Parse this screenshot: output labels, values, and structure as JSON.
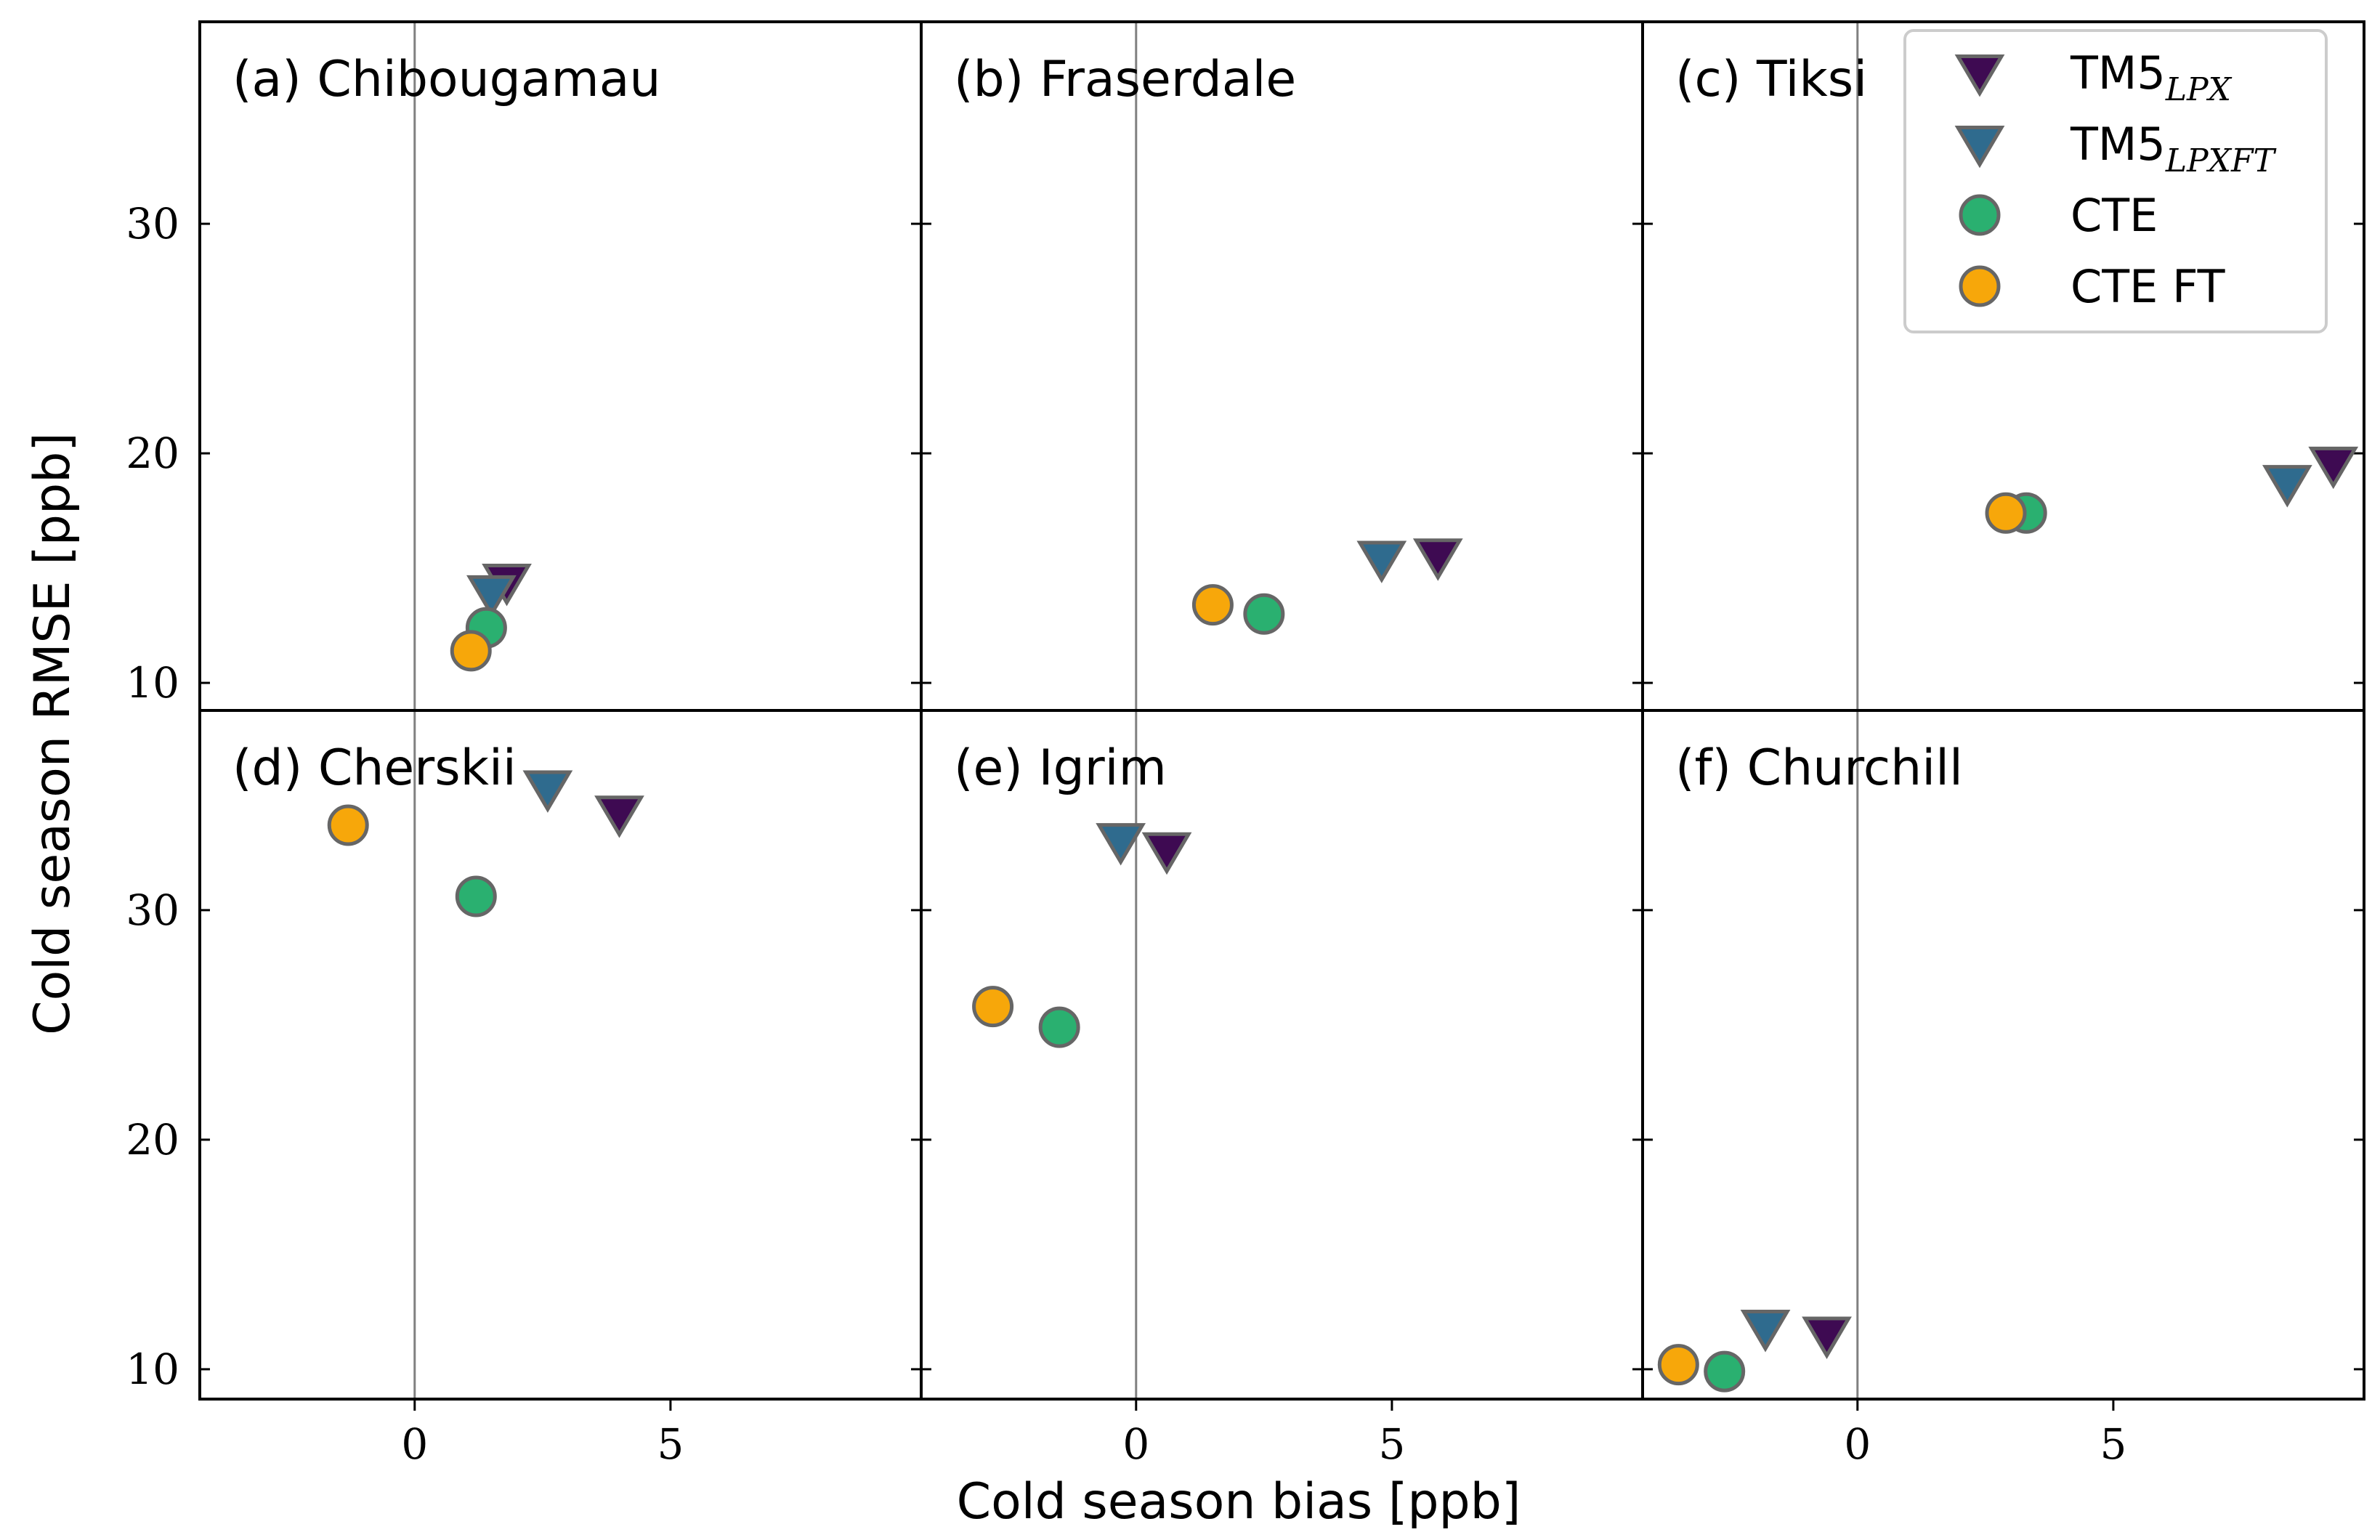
{
  "chart_data": {
    "type": "scatter",
    "layout": "2x3 panels, shared axes",
    "xlabel": "Cold season bias [ppb]",
    "ylabel": "Cold season RMSE [ppb]",
    "columns": [
      {
        "xlim": [
          -4.2,
          9.9
        ],
        "xticks": [
          0,
          5
        ]
      },
      {
        "xlim": [
          -4.2,
          9.9
        ],
        "xticks": [
          0,
          5
        ]
      },
      {
        "xlim": [
          -4.2,
          9.9
        ],
        "xticks": [
          0,
          5
        ]
      }
    ],
    "rows": [
      {
        "ylim": [
          8.8,
          38.8
        ],
        "yticks": [
          10,
          20,
          30
        ]
      },
      {
        "ylim": [
          8.7,
          38.7
        ],
        "yticks": [
          10,
          20,
          30
        ]
      }
    ],
    "legend": {
      "placement": "top-right",
      "entries": [
        {
          "key": "tm5_lpx",
          "base": "TM5",
          "sub": "LPX",
          "marker": "triangle-down",
          "color": "#3e0a52"
        },
        {
          "key": "tm5_lpxft",
          "base": "TM5",
          "sub": "LPXFT",
          "marker": "triangle-down",
          "color": "#2f6b8e"
        },
        {
          "key": "cte",
          "label": "CTE",
          "marker": "circle",
          "color": "#2ab070"
        },
        {
          "key": "cte_ft",
          "label": "CTE FT",
          "marker": "circle",
          "color": "#f7a70a"
        }
      ]
    },
    "panels": [
      {
        "id": "a",
        "title": "(a) Chibougamau",
        "row": 0,
        "col": 0,
        "points": {
          "tm5_lpx": [
            1.8,
            14.4
          ],
          "tm5_lpxft": [
            1.5,
            13.9
          ],
          "cte": [
            1.4,
            12.4
          ],
          "cte_ft": [
            1.1,
            11.4
          ]
        }
      },
      {
        "id": "b",
        "title": "(b) Fraserdale",
        "row": 0,
        "col": 1,
        "points": {
          "tm5_lpx": [
            5.9,
            15.5
          ],
          "tm5_lpxft": [
            4.8,
            15.4
          ],
          "cte": [
            2.5,
            13.0
          ],
          "cte_ft": [
            1.5,
            13.4
          ]
        }
      },
      {
        "id": "c",
        "title": "(c) Tiksi",
        "row": 0,
        "col": 2,
        "points": {
          "tm5_lpx": [
            9.3,
            19.5
          ],
          "tm5_lpxft": [
            8.4,
            18.7
          ],
          "cte": [
            3.3,
            17.4
          ],
          "cte_ft": [
            2.9,
            17.4
          ]
        }
      },
      {
        "id": "d",
        "title": "(d) Cherskii",
        "row": 1,
        "col": 0,
        "points": {
          "tm5_lpx": [
            4.0,
            34.2
          ],
          "tm5_lpxft": [
            2.6,
            35.3
          ],
          "cte": [
            1.2,
            30.6
          ],
          "cte_ft": [
            -1.3,
            33.7
          ]
        }
      },
      {
        "id": "e",
        "title": "(e) Igrim",
        "row": 1,
        "col": 1,
        "points": {
          "tm5_lpx": [
            0.6,
            32.6
          ],
          "tm5_lpxft": [
            -0.3,
            33.0
          ],
          "cte": [
            -1.5,
            24.9
          ],
          "cte_ft": [
            -2.8,
            25.8
          ]
        }
      },
      {
        "id": "f",
        "title": "(f) Churchill",
        "row": 1,
        "col": 2,
        "points": {
          "tm5_lpx": [
            -0.6,
            11.5
          ],
          "tm5_lpxft": [
            -1.8,
            11.8
          ],
          "cte": [
            -2.6,
            9.9
          ],
          "cte_ft": [
            -3.5,
            10.2
          ]
        }
      }
    ]
  }
}
